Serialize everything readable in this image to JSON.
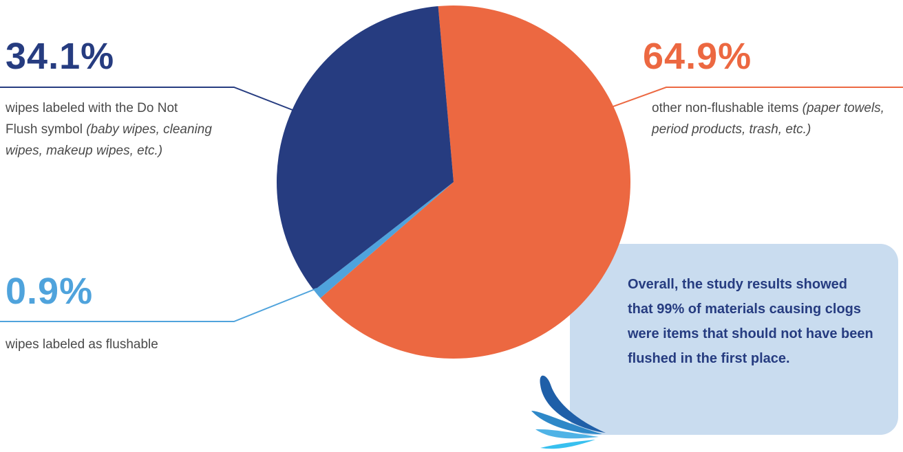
{
  "chart_data": {
    "type": "pie",
    "categories": [
      "other non-flushable items",
      "wipes labeled as flushable",
      "wipes labeled with the Do Not Flush symbol"
    ],
    "notes": {
      "0": "(paper towels, period products, trash, etc.)",
      "2": "(baby wipes, cleaning wipes, makeup wipes, etc.)"
    },
    "values": [
      64.9,
      0.9,
      34.1
    ],
    "value_labels": [
      "64.9%",
      "0.9%",
      "34.1%"
    ],
    "colors": [
      "#ec6841",
      "#4fa3dc",
      "#263c80"
    ],
    "annotation": "Overall, the study results showed that 99% of materials causing clogs were items that should not have been flushed in the first place."
  }
}
